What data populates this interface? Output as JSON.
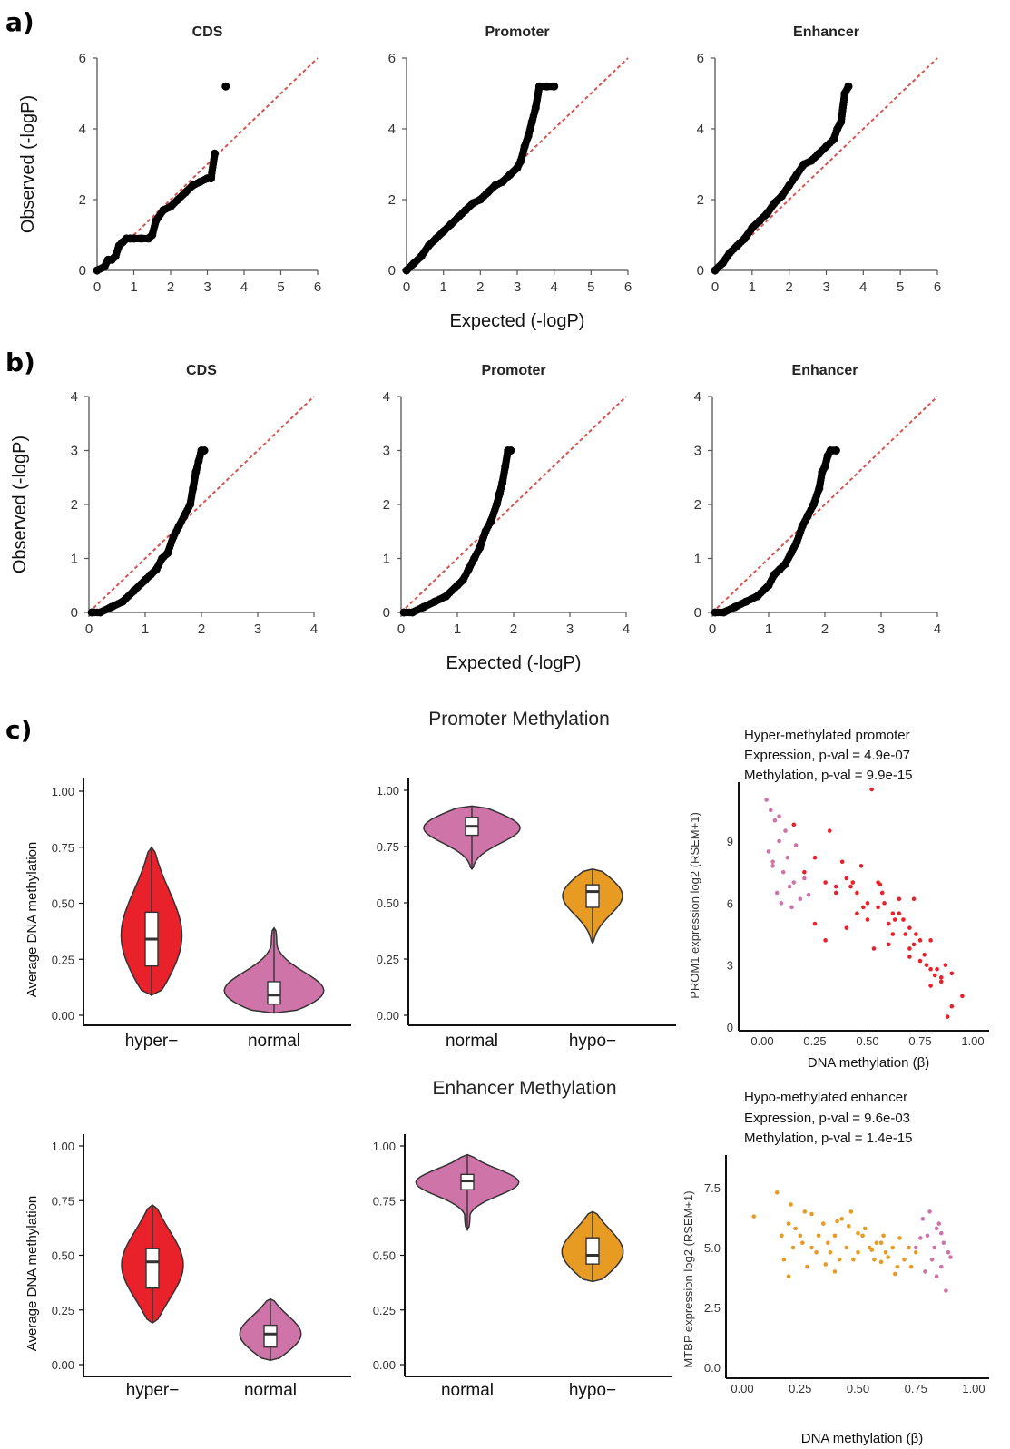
{
  "panel_labels": [
    "a)",
    "b)",
    "c)"
  ],
  "chart_data": [
    {
      "id": "a-cds",
      "type": "scatter",
      "panel": "a)",
      "title": "CDS",
      "ylabel": "Observed (-logP)",
      "xlabel": "",
      "xlim": [
        0,
        6
      ],
      "ylim": [
        0,
        6
      ],
      "xticks": [
        "0",
        "1",
        "2",
        "3",
        "4",
        "5",
        "6"
      ],
      "yticks": [
        "0",
        "2",
        "4",
        "6"
      ],
      "reference_line": "y = x",
      "x": [
        0,
        0.2,
        0.3,
        0.4,
        0.5,
        0.6,
        0.7,
        0.8,
        0.9,
        1.0,
        1.2,
        1.4,
        1.5,
        1.6,
        1.8,
        2.0,
        2.2,
        2.4,
        2.6,
        2.8,
        3.0,
        3.1,
        3.2,
        3.5
      ],
      "y": [
        0,
        0.1,
        0.3,
        0.3,
        0.4,
        0.7,
        0.8,
        0.9,
        0.9,
        0.9,
        0.9,
        0.9,
        1.0,
        1.4,
        1.7,
        1.8,
        2.0,
        2.2,
        2.4,
        2.5,
        2.6,
        2.6,
        3.3,
        5.2
      ]
    },
    {
      "id": "a-promoter",
      "type": "scatter",
      "panel": "a)",
      "title": "Promoter",
      "ylabel": "",
      "xlabel": "Expected (-logP)",
      "xlim": [
        0,
        6
      ],
      "ylim": [
        0,
        6
      ],
      "xticks": [
        "0",
        "1",
        "2",
        "3",
        "4",
        "5",
        "6"
      ],
      "yticks": [
        "0",
        "2",
        "4",
        "6"
      ],
      "reference_line": "y = x",
      "x": [
        0,
        0.2,
        0.4,
        0.6,
        0.8,
        1.0,
        1.2,
        1.4,
        1.6,
        1.8,
        2.0,
        2.2,
        2.4,
        2.6,
        2.8,
        3.0,
        3.1,
        3.2,
        3.3,
        3.4,
        3.5,
        3.6,
        3.8,
        4.0
      ],
      "y": [
        0,
        0.2,
        0.4,
        0.7,
        0.9,
        1.1,
        1.3,
        1.5,
        1.7,
        1.9,
        2.0,
        2.2,
        2.4,
        2.5,
        2.7,
        2.9,
        3.1,
        3.5,
        3.8,
        4.2,
        4.6,
        5.2,
        5.2,
        5.2
      ]
    },
    {
      "id": "a-enhancer",
      "type": "scatter",
      "panel": "a)",
      "title": "Enhancer",
      "ylabel": "",
      "xlabel": "",
      "xlim": [
        0,
        6
      ],
      "ylim": [
        0,
        6
      ],
      "xticks": [
        "0",
        "1",
        "2",
        "3",
        "4",
        "5",
        "6"
      ],
      "yticks": [
        "0",
        "2",
        "4",
        "6"
      ],
      "reference_line": "y = x",
      "x": [
        0,
        0.2,
        0.4,
        0.6,
        0.8,
        1.0,
        1.2,
        1.4,
        1.6,
        1.8,
        2.0,
        2.2,
        2.4,
        2.6,
        2.8,
        3.0,
        3.2,
        3.3,
        3.4,
        3.5,
        3.6
      ],
      "y": [
        0,
        0.2,
        0.5,
        0.7,
        0.9,
        1.2,
        1.4,
        1.6,
        1.9,
        2.1,
        2.4,
        2.7,
        3.0,
        3.1,
        3.3,
        3.5,
        3.7,
        4.0,
        4.2,
        5.0,
        5.2
      ]
    },
    {
      "id": "b-cds",
      "type": "scatter",
      "panel": "b)",
      "title": "CDS",
      "ylabel": "Observed (-logP)",
      "xlabel": "",
      "xlim": [
        0,
        4
      ],
      "ylim": [
        0,
        4
      ],
      "xticks": [
        "0",
        "1",
        "2",
        "3",
        "4"
      ],
      "yticks": [
        "0",
        "1",
        "2",
        "3",
        "4"
      ],
      "reference_line": "y = x",
      "x": [
        0.05,
        0.2,
        0.4,
        0.6,
        0.8,
        1.0,
        1.1,
        1.2,
        1.3,
        1.4,
        1.5,
        1.6,
        1.7,
        1.8,
        1.85,
        1.9,
        1.95,
        2.0,
        2.05
      ],
      "y": [
        0,
        0,
        0.1,
        0.2,
        0.4,
        0.6,
        0.7,
        0.8,
        1.0,
        1.1,
        1.4,
        1.6,
        1.8,
        2.0,
        2.3,
        2.6,
        2.8,
        3.0,
        3.0
      ]
    },
    {
      "id": "b-promoter",
      "type": "scatter",
      "panel": "b)",
      "title": "Promoter",
      "ylabel": "",
      "xlabel": "Expected (-logP)",
      "xlim": [
        0,
        4
      ],
      "ylim": [
        0,
        4
      ],
      "xticks": [
        "0",
        "1",
        "2",
        "3",
        "4"
      ],
      "yticks": [
        "0",
        "1",
        "2",
        "3",
        "4"
      ],
      "reference_line": "y = x",
      "x": [
        0.05,
        0.2,
        0.4,
        0.6,
        0.8,
        1.0,
        1.1,
        1.2,
        1.3,
        1.4,
        1.5,
        1.6,
        1.7,
        1.75,
        1.8,
        1.85,
        1.9,
        1.95
      ],
      "y": [
        0,
        0,
        0.1,
        0.2,
        0.3,
        0.5,
        0.6,
        0.8,
        1.0,
        1.2,
        1.5,
        1.7,
        2.0,
        2.2,
        2.4,
        2.7,
        3.0,
        3.0
      ]
    },
    {
      "id": "b-enhancer",
      "type": "scatter",
      "panel": "b)",
      "title": "Enhancer",
      "ylabel": "",
      "xlabel": "",
      "xlim": [
        0,
        4
      ],
      "ylim": [
        0,
        4
      ],
      "xticks": [
        "0",
        "1",
        "2",
        "3",
        "4"
      ],
      "yticks": [
        "0",
        "1",
        "2",
        "3",
        "4"
      ],
      "reference_line": "y = x",
      "x": [
        0.05,
        0.2,
        0.4,
        0.6,
        0.8,
        1.0,
        1.1,
        1.2,
        1.3,
        1.4,
        1.5,
        1.6,
        1.7,
        1.8,
        1.9,
        1.95,
        2.0,
        2.05,
        2.1,
        2.2
      ],
      "y": [
        0,
        0,
        0.1,
        0.2,
        0.3,
        0.5,
        0.7,
        0.8,
        0.9,
        1.1,
        1.3,
        1.6,
        1.8,
        2.0,
        2.3,
        2.6,
        2.7,
        2.9,
        3.0,
        3.0
      ]
    },
    {
      "id": "c-prom-violin1",
      "type": "violin",
      "panel": "c)",
      "section": "Promoter Methylation",
      "ylabel": "Average DNA methylation",
      "ylim": [
        0,
        1.05
      ],
      "yticks": [
        "0.00",
        "0.25",
        "0.50",
        "0.75",
        "1.00"
      ],
      "groups": [
        {
          "category": "hyper−",
          "color": "#e8212a",
          "min": 0.09,
          "q1": 0.22,
          "median": 0.34,
          "q3": 0.46,
          "max": 0.75
        },
        {
          "category": "normal",
          "color": "#cf74a8",
          "min": 0.01,
          "q1": 0.05,
          "median": 0.09,
          "q3": 0.15,
          "max": 0.39
        }
      ]
    },
    {
      "id": "c-prom-violin2",
      "type": "violin",
      "panel": "c)",
      "section": "Promoter Methylation",
      "ylabel": "",
      "ylim": [
        0,
        1.05
      ],
      "yticks": [
        "0.00",
        "0.25",
        "0.50",
        "0.75",
        "1.00"
      ],
      "groups": [
        {
          "category": "normal",
          "color": "#cf74a8",
          "min": 0.65,
          "q1": 0.8,
          "median": 0.84,
          "q3": 0.88,
          "max": 0.93
        },
        {
          "category": "hypo−",
          "color": "#e89b23",
          "min": 0.32,
          "q1": 0.48,
          "median": 0.55,
          "q3": 0.58,
          "max": 0.65
        }
      ]
    },
    {
      "id": "c-prom-scatter",
      "type": "scatter",
      "panel": "c)",
      "title_lines": [
        "Hyper-methylated promoter",
        "Expression, p-val = 4.9e-07",
        "Methylation, p-val = 9.9e-15"
      ],
      "xlabel": "DNA methylation (β)",
      "ylabel": "PROM1 expression  log2 (RSEM+1)",
      "xlim": [
        -0.05,
        1.05
      ],
      "ylim": [
        0,
        12
      ],
      "xticks": [
        "0.00",
        "0.25",
        "0.50",
        "0.75",
        "1.00"
      ],
      "yticks": [
        "0",
        "3",
        "6",
        "9"
      ],
      "series": [
        {
          "color": "#cf74a8",
          "x": [
            0.02,
            0.04,
            0.06,
            0.08,
            0.03,
            0.05,
            0.1,
            0.12,
            0.15,
            0.07,
            0.09,
            0.13,
            0.18,
            0.2,
            0.11,
            0.05,
            0.14,
            0.08,
            0.22,
            0.16
          ],
          "y": [
            11,
            10.5,
            10,
            9,
            8.5,
            8,
            7.5,
            8.2,
            7,
            6.5,
            6,
            6.8,
            6.2,
            7.2,
            9.5,
            7.8,
            5.8,
            10.2,
            6.4,
            8.8
          ]
        },
        {
          "color": "#e8212a",
          "x": [
            0.15,
            0.2,
            0.25,
            0.3,
            0.32,
            0.35,
            0.38,
            0.4,
            0.42,
            0.45,
            0.47,
            0.5,
            0.52,
            0.55,
            0.57,
            0.6,
            0.62,
            0.65,
            0.67,
            0.7,
            0.72,
            0.75,
            0.77,
            0.8,
            0.82,
            0.85,
            0.87,
            0.9,
            0.95,
            0.25,
            0.3,
            0.4,
            0.45,
            0.5,
            0.55,
            0.6,
            0.65,
            0.7,
            0.75,
            0.8,
            0.35,
            0.48,
            0.58,
            0.68,
            0.78,
            0.53,
            0.63,
            0.73,
            0.83,
            0.88,
            0.43,
            0.62,
            0.72,
            0.8,
            0.85,
            0.7,
            0.9,
            0.56
          ],
          "y": [
            9.8,
            7.5,
            8.2,
            7,
            9.5,
            6.5,
            8,
            7.2,
            6.8,
            5.5,
            7.8,
            6,
            11.5,
            5.8,
            6.5,
            5,
            4.5,
            6.2,
            5.2,
            4.8,
            4,
            4.2,
            3.5,
            2.8,
            2.5,
            2.2,
            3,
            2.6,
            1.5,
            5,
            4.2,
            4.8,
            6.5,
            5.2,
            7,
            4,
            5.5,
            3.8,
            3.2,
            2,
            6.8,
            5.8,
            6,
            4.5,
            3,
            3.8,
            5.2,
            4.5,
            2.8,
            0.5,
            7,
            5.5,
            6.2,
            4.2,
            2.4,
            3.4,
            1,
            6.9
          ]
        }
      ]
    },
    {
      "id": "c-enh-violin1",
      "type": "violin",
      "panel": "c)",
      "section": "Enhancer Methylation",
      "ylabel": "Average DNA methylation",
      "ylim": [
        0,
        1.05
      ],
      "yticks": [
        "0.00",
        "0.25",
        "0.50",
        "0.75",
        "1.00"
      ],
      "groups": [
        {
          "category": "hyper−",
          "color": "#e8212a",
          "min": 0.19,
          "q1": 0.35,
          "median": 0.47,
          "q3": 0.53,
          "max": 0.73
        },
        {
          "category": "normal",
          "color": "#cf74a8",
          "min": 0.02,
          "q1": 0.08,
          "median": 0.14,
          "q3": 0.18,
          "max": 0.3
        }
      ]
    },
    {
      "id": "c-enh-violin2",
      "type": "violin",
      "panel": "c)",
      "section": "Enhancer Methylation",
      "ylabel": "",
      "ylim": [
        0,
        1.05
      ],
      "yticks": [
        "0.00",
        "0.25",
        "0.50",
        "0.75",
        "1.00"
      ],
      "groups": [
        {
          "category": "normal",
          "color": "#cf74a8",
          "min": 0.62,
          "q1": 0.8,
          "median": 0.84,
          "q3": 0.87,
          "max": 0.96
        },
        {
          "category": "hypo−",
          "color": "#e89b23",
          "min": 0.38,
          "q1": 0.46,
          "median": 0.5,
          "q3": 0.58,
          "max": 0.7
        }
      ]
    },
    {
      "id": "c-enh-scatter",
      "type": "scatter",
      "panel": "c)",
      "title_lines": [
        "Hypo-methylated enhancer",
        "Expression, p-val = 9.6e-03",
        "Methylation, p-val = 1.4e-15"
      ],
      "xlabel": "DNA methylation (β)",
      "ylabel": "MTBP expression  log2 (RSEM+1)",
      "xlim": [
        -0.05,
        1.05
      ],
      "ylim": [
        -0.3,
        9.5
      ],
      "xticks": [
        "0.00",
        "0.25",
        "0.50",
        "0.75",
        "1.00"
      ],
      "yticks": [
        "0.0",
        "2.5",
        "5.0",
        "7.5"
      ],
      "series": [
        {
          "color": "#e89b23",
          "x": [
            0.05,
            0.15,
            0.17,
            0.2,
            0.22,
            0.25,
            0.27,
            0.3,
            0.32,
            0.35,
            0.37,
            0.4,
            0.42,
            0.45,
            0.47,
            0.5,
            0.52,
            0.55,
            0.57,
            0.6,
            0.62,
            0.65,
            0.67,
            0.7,
            0.72,
            0.75,
            0.18,
            0.23,
            0.28,
            0.33,
            0.38,
            0.43,
            0.48,
            0.53,
            0.58,
            0.63,
            0.68,
            0.73,
            0.2,
            0.3,
            0.4,
            0.5,
            0.6,
            0.26,
            0.36,
            0.46,
            0.56,
            0.66,
            0.21,
            0.41,
            0.61
          ],
          "y": [
            6.3,
            7.3,
            5.5,
            6,
            5,
            5.5,
            6.5,
            5,
            4.8,
            6,
            5.2,
            5.5,
            4.5,
            5,
            6.5,
            4.8,
            5.5,
            5,
            4.5,
            5.2,
            4.8,
            5,
            4.2,
            4.5,
            5,
            4.8,
            4.5,
            5.8,
            4.2,
            5.5,
            4.8,
            6.2,
            4.5,
            5.8,
            5.2,
            4.6,
            5.4,
            4.2,
            3.8,
            6.4,
            4,
            5.6,
            4.4,
            5.2,
            4.3,
            5.9,
            4.9,
            3.9,
            6.8,
            6.1,
            5.5
          ]
        },
        {
          "color": "#cf74a8",
          "x": [
            0.75,
            0.78,
            0.8,
            0.82,
            0.84,
            0.85,
            0.86,
            0.87,
            0.88,
            0.9,
            0.79,
            0.83,
            0.81,
            0.86,
            0.89,
            0.77,
            0.84
          ],
          "y": [
            5,
            6.2,
            5.5,
            4.5,
            5.8,
            6,
            4.2,
            5.2,
            3.2,
            4.6,
            4,
            5,
            6.5,
            5.6,
            4.8,
            5.4,
            3.8
          ]
        }
      ]
    }
  ]
}
